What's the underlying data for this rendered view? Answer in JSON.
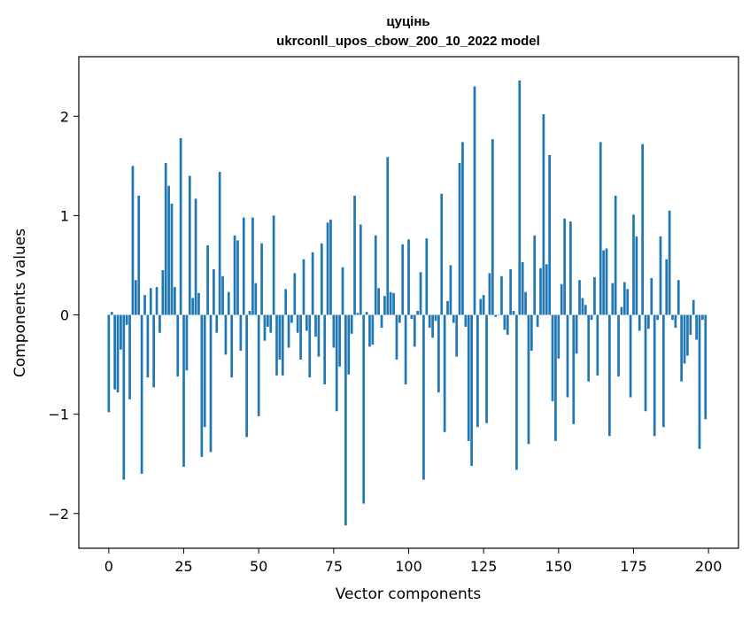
{
  "chart_data": {
    "type": "bar",
    "title": "цуцінь",
    "subtitle": "ukrconll_upos_cbow_200_10_2022 model",
    "xlabel": "Vector components",
    "ylabel": "Components values",
    "xlim": [
      -10,
      210
    ],
    "ylim": [
      -2.35,
      2.6
    ],
    "xticks": [
      0,
      25,
      50,
      75,
      100,
      125,
      150,
      175,
      200
    ],
    "yticks": [
      -2,
      -1,
      0,
      1,
      2
    ],
    "ytick_labels": [
      "−2",
      "−1",
      "0",
      "1",
      "2"
    ],
    "grid": false,
    "bar_color": "#1f77b4",
    "values": [
      -0.98,
      0.03,
      -0.75,
      -0.78,
      -0.35,
      -1.66,
      -0.1,
      -0.85,
      1.5,
      0.35,
      1.2,
      -1.6,
      0.2,
      -0.63,
      0.27,
      -0.73,
      0.28,
      -0.18,
      0.45,
      1.53,
      1.3,
      1.12,
      0.28,
      -0.62,
      1.78,
      -1.53,
      -0.56,
      1.4,
      0.17,
      1.17,
      0.22,
      -1.43,
      -1.13,
      0.7,
      -1.38,
      0.46,
      -0.18,
      1.44,
      0.39,
      -0.4,
      0.23,
      -0.63,
      0.8,
      0.75,
      -0.36,
      0.98,
      -1.23,
      0.04,
      0.98,
      0.32,
      -1.02,
      0.72,
      -0.26,
      -0.12,
      -0.18,
      1.0,
      -0.61,
      -0.45,
      -0.61,
      0.26,
      -0.33,
      -0.08,
      0.42,
      -0.18,
      -0.45,
      0.56,
      -0.16,
      -0.63,
      0.63,
      -0.22,
      -0.42,
      0.72,
      -0.7,
      0.93,
      0.96,
      -0.33,
      -0.97,
      -0.52,
      0.48,
      -2.12,
      -0.6,
      -0.19,
      1.2,
      0.02,
      0.91,
      -1.9,
      0.03,
      -0.32,
      -0.3,
      0.8,
      0.27,
      -0.13,
      0.19,
      1.59,
      0.23,
      0.22,
      -0.45,
      -0.08,
      0.71,
      -0.7,
      0.76,
      -0.04,
      -0.32,
      0.04,
      0.43,
      -1.66,
      0.77,
      -0.13,
      -0.23,
      -0.06,
      -0.78,
      1.22,
      -1.18,
      0.14,
      0.5,
      -0.08,
      -0.42,
      1.53,
      1.74,
      -0.12,
      -1.27,
      -1.52,
      2.3,
      -1.13,
      0.16,
      0.2,
      -1.09,
      0.42,
      1.77,
      -0.02,
      0.0,
      0.39,
      -0.15,
      -0.2,
      0.46,
      0.04,
      -1.56,
      2.36,
      0.53,
      0.23,
      -1.3,
      -0.36,
      0.8,
      -0.12,
      0.47,
      2.02,
      0.51,
      1.61,
      -0.87,
      -1.27,
      -0.44,
      0.31,
      0.97,
      -0.83,
      0.94,
      -1.1,
      -0.39,
      0.35,
      0.17,
      0.1,
      -0.67,
      -0.05,
      0.38,
      -0.61,
      1.74,
      0.65,
      0.67,
      -1.22,
      0.32,
      1.2,
      -0.62,
      0.08,
      0.33,
      0.26,
      -0.83,
      1.01,
      0.79,
      -0.16,
      1.72,
      -0.97,
      -0.14,
      0.37,
      -1.22,
      -0.05,
      0.79,
      -1.13,
      0.56,
      1.05,
      -0.05,
      -0.13,
      0.35,
      -0.67,
      -0.49,
      -0.41,
      -0.2,
      0.15,
      -0.25,
      -1.35,
      -0.05,
      -1.05
    ]
  }
}
